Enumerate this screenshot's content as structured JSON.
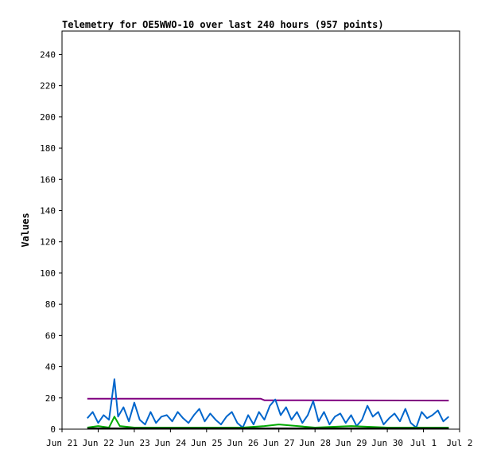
{
  "chart_data": {
    "type": "line",
    "title": "Telemetry for OE5WWO-10 over last 240 hours (957 points)",
    "xlabel": "",
    "ylabel": "Values",
    "ylim": [
      0,
      255
    ],
    "yticks": [
      0,
      20,
      40,
      60,
      80,
      100,
      120,
      140,
      160,
      180,
      200,
      220,
      240
    ],
    "xlim": [
      "Jun 21",
      "Jul 2"
    ],
    "xticks": [
      "Jun 21",
      "Jun 22",
      "Jun 23",
      "Jun 24",
      "Jun 25",
      "Jun 26",
      "Jun 27",
      "Jun 28",
      "Jun 29",
      "Jun 30",
      "Jul 1",
      "Jul 2"
    ],
    "grid": false,
    "legend": "none",
    "series": [
      {
        "color": "#800080",
        "x": [
          "Jun 21.7",
          "Jun 26.5",
          "Jun 26.6",
          "Jul 1.7"
        ],
        "values": [
          19.5,
          19.5,
          18.5,
          18.3
        ]
      },
      {
        "color": "#0066cc",
        "x": [
          "Jun 21.7",
          "Jun 21.85",
          "Jun 22.0",
          "Jun 22.15",
          "Jun 22.3",
          "Jun 22.45",
          "Jun 22.55",
          "Jun 22.7",
          "Jun 22.85",
          "Jun 23.0",
          "Jun 23.15",
          "Jun 23.3",
          "Jun 23.45",
          "Jun 23.6",
          "Jun 23.75",
          "Jun 23.9",
          "Jun 24.05",
          "Jun 24.2",
          "Jun 24.35",
          "Jun 24.5",
          "Jun 24.65",
          "Jun 24.8",
          "Jun 24.95",
          "Jun 25.1",
          "Jun 25.25",
          "Jun 25.4",
          "Jun 25.55",
          "Jun 25.7",
          "Jun 25.85",
          "Jun 26.0",
          "Jun 26.15",
          "Jun 26.3",
          "Jun 26.45",
          "Jun 26.6",
          "Jun 26.75",
          "Jun 26.9",
          "Jun 27.05",
          "Jun 27.2",
          "Jun 27.35",
          "Jun 27.5",
          "Jun 27.65",
          "Jun 27.8",
          "Jun 27.95",
          "Jun 28.1",
          "Jun 28.25",
          "Jun 28.4",
          "Jun 28.55",
          "Jun 28.7",
          "Jun 28.85",
          "Jun 29.0",
          "Jun 29.15",
          "Jun 29.3",
          "Jun 29.45",
          "Jun 29.6",
          "Jun 29.75",
          "Jun 29.9",
          "Jun 30.05",
          "Jun 30.2",
          "Jun 30.35",
          "Jun 30.5",
          "Jun 30.65",
          "Jun 30.8",
          "Jun 30.95",
          "Jul 1.1",
          "Jul 1.25",
          "Jul 1.4",
          "Jul 1.55",
          "Jul 1.7"
        ],
        "values": [
          7,
          11,
          4,
          9,
          6,
          32,
          8,
          14,
          5,
          17,
          6,
          3,
          11,
          4,
          8,
          9,
          5,
          11,
          7,
          4,
          9,
          13,
          5,
          10,
          6,
          3,
          8,
          11,
          4,
          1,
          9,
          3,
          11,
          6,
          15,
          19,
          9,
          14,
          6,
          11,
          4,
          9,
          18,
          5,
          11,
          3,
          8,
          10,
          4,
          9,
          2,
          6,
          15,
          8,
          11,
          3,
          7,
          10,
          5,
          13,
          4,
          1,
          11,
          7,
          9,
          12,
          5,
          8
        ]
      },
      {
        "color": "#00aa00",
        "x": [
          "Jun 21.7",
          "Jun 22.0",
          "Jun 22.3",
          "Jun 22.45",
          "Jun 22.6",
          "Jun 23.0",
          "Jun 24.0",
          "Jun 25.0",
          "Jun 26.0",
          "Jun 26.6",
          "Jun 27.0",
          "Jun 28.0",
          "Jun 29.0",
          "Jun 30.0",
          "Jul 1.0",
          "Jul 1.7"
        ],
        "values": [
          1,
          2,
          1,
          8,
          2,
          1,
          1,
          1,
          1,
          2,
          3,
          1,
          2,
          1,
          1,
          1
        ]
      },
      {
        "color": "#000000",
        "x": [
          "Jun 21.7",
          "Jul 1.7"
        ],
        "values": [
          0.5,
          0.5
        ]
      }
    ]
  }
}
